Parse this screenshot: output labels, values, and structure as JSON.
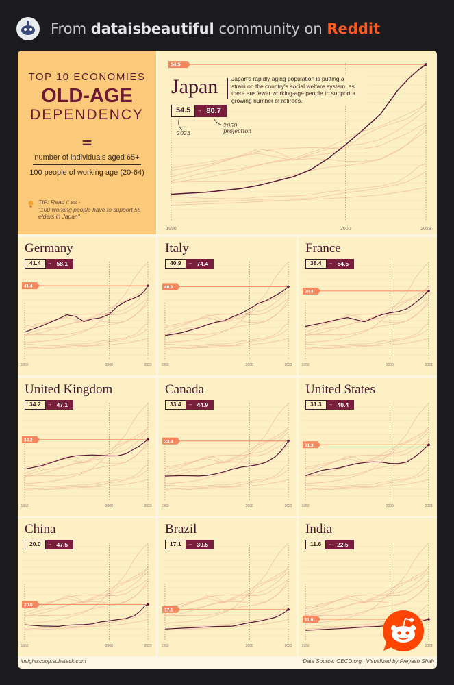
{
  "header": {
    "prefix": "From",
    "community": "datаisbeautiful",
    "middle": "community on",
    "platform": "Reddit"
  },
  "info": {
    "kicker": "TOP 10 ECONOMIES",
    "title_line1": "OLD-AGE",
    "title_line2": "DEPENDENCY",
    "equals": "=",
    "numerator": "number of individuals aged 65+",
    "denominator": "100 people of working age (20-64)",
    "tip_line1": "TIP: Read it as -",
    "tip_line2": "\"100 working people have to support 55",
    "tip_line3": "elders in Japan\""
  },
  "japan_note": {
    "text_lines": [
      "Japan's rapidly aging population is putting a",
      "strain on the country's social welfare system, as",
      "there are fewer working-age people to support a",
      "growing number of retirees."
    ],
    "label_2023": "2023",
    "label_proj1": "2050",
    "label_proj2": "projection"
  },
  "footer": {
    "left": "insightscoop.substack.com",
    "right": "Data Source: OECD.org | Visualized by Preyash Shah"
  },
  "colors": {
    "background": "#1b1b1d",
    "poster": "#fdf6e3",
    "panel": "#fdf0c4",
    "info_panel": "#fbc97a",
    "highlight_line": "#5b1638",
    "ghost_line": "#f2b9a0",
    "tag": "#f5875f",
    "maroon": "#7a1f3b",
    "reddit": "#ff5a1f"
  },
  "chart_data": [
    {
      "type": "line",
      "country": "Japan",
      "v2023": "54.5",
      "v2050": "80.7",
      "tag": "54.5",
      "x_ticks": [
        "1950",
        "2000",
        "2023"
      ],
      "ymax": 55,
      "x": [
        1950,
        1960,
        1970,
        1975,
        1980,
        1985,
        1990,
        1995,
        2000,
        2005,
        2010,
        2015,
        2018,
        2021,
        2023
      ],
      "y": [
        9.2,
        9.9,
        11.2,
        12.3,
        13.8,
        15.3,
        17.8,
        21.7,
        26.5,
        31.7,
        37.2,
        45.6,
        49.5,
        52.8,
        54.5
      ]
    },
    {
      "type": "line",
      "country": "Germany",
      "v2023": "41.4",
      "v2050": "58.1",
      "tag": "41.4",
      "x_ticks": [
        "1950",
        "2000",
        "2023"
      ],
      "ymax": 55,
      "x": [
        1950,
        1960,
        1970,
        1975,
        1980,
        1985,
        1990,
        1995,
        2000,
        2005,
        2010,
        2015,
        2018,
        2021,
        2023
      ],
      "y": [
        15.2,
        18.6,
        22.7,
        25.0,
        24.1,
        21.2,
        22.6,
        23.3,
        25.2,
        29.8,
        32.5,
        34.5,
        35.8,
        38.4,
        41.4
      ]
    },
    {
      "type": "line",
      "country": "Italy",
      "v2023": "40.9",
      "v2050": "74.4",
      "tag": "40.9",
      "x_ticks": [
        "1950",
        "2000",
        "2023"
      ],
      "ymax": 55,
      "x": [
        1950,
        1960,
        1970,
        1975,
        1980,
        1985,
        1990,
        1995,
        2000,
        2005,
        2010,
        2015,
        2018,
        2021,
        2023
      ],
      "y": [
        13.2,
        14.9,
        17.6,
        19.3,
        20.8,
        21.6,
        23.8,
        25.7,
        28.4,
        31.3,
        33.0,
        35.7,
        37.3,
        39.2,
        40.9
      ]
    },
    {
      "type": "line",
      "country": "France",
      "v2023": "38.4",
      "v2050": "54.5",
      "tag": "38.4",
      "x_ticks": [
        "1950",
        "2000",
        "2023"
      ],
      "ymax": 55,
      "x": [
        1950,
        1960,
        1970,
        1975,
        1980,
        1985,
        1990,
        1995,
        2000,
        2005,
        2010,
        2015,
        2018,
        2021,
        2023
      ],
      "y": [
        18.4,
        20.3,
        22.5,
        23.4,
        22.2,
        21.0,
        23.1,
        25.0,
        26.1,
        26.8,
        28.3,
        31.6,
        34.0,
        36.8,
        38.4
      ]
    },
    {
      "type": "line",
      "country": "United Kingdom",
      "v2023": "34.2",
      "v2050": "47.1",
      "tag": "34.2",
      "x_ticks": [
        "1950",
        "2000",
        "2023"
      ],
      "ymax": 55,
      "x": [
        1950,
        1960,
        1970,
        1975,
        1980,
        1985,
        1990,
        1995,
        2000,
        2005,
        2010,
        2015,
        2018,
        2021,
        2023
      ],
      "y": [
        17.5,
        19.4,
        22.5,
        24.0,
        25.0,
        25.3,
        25.5,
        25.3,
        25.0,
        25.0,
        26.2,
        29.0,
        30.6,
        32.8,
        34.2
      ]
    },
    {
      "type": "line",
      "country": "Canada",
      "v2023": "33.4",
      "v2050": "44.9",
      "tag": "33.4",
      "x_ticks": [
        "1950",
        "2000",
        "2023"
      ],
      "ymax": 55,
      "x": [
        1950,
        1960,
        1970,
        1975,
        1980,
        1985,
        1990,
        1995,
        2000,
        2005,
        2010,
        2015,
        2018,
        2021,
        2023
      ],
      "y": [
        13.5,
        13.8,
        13.6,
        13.9,
        14.8,
        16.0,
        17.5,
        18.6,
        19.2,
        20.0,
        21.4,
        24.3,
        27.0,
        30.6,
        33.4
      ]
    },
    {
      "type": "line",
      "country": "United States",
      "v2023": "31.3",
      "v2050": "40.4",
      "tag": "31.3",
      "x_ticks": [
        "1950",
        "2000",
        "2023"
      ],
      "ymax": 55,
      "x": [
        1950,
        1960,
        1970,
        1975,
        1980,
        1985,
        1990,
        1995,
        2000,
        2005,
        2010,
        2015,
        2018,
        2021,
        2023
      ],
      "y": [
        13.8,
        16.9,
        18.2,
        19.4,
        20.5,
        21.2,
        21.6,
        21.4,
        20.7,
        20.6,
        21.5,
        24.6,
        26.8,
        29.5,
        31.3
      ]
    },
    {
      "type": "line",
      "country": "China",
      "v2023": "20.0",
      "v2050": "47.5",
      "tag": "20.0",
      "x_ticks": [
        "1950",
        "2000",
        "2023"
      ],
      "ymax": 55,
      "x": [
        1950,
        1960,
        1970,
        1975,
        1980,
        1985,
        1990,
        1995,
        2000,
        2005,
        2010,
        2015,
        2018,
        2021,
        2023
      ],
      "y": [
        8.5,
        7.8,
        7.6,
        8.2,
        8.5,
        8.6,
        9.0,
        10.1,
        10.7,
        11.4,
        12.0,
        13.6,
        15.8,
        19.0,
        20.0
      ]
    },
    {
      "type": "line",
      "country": "Brazil",
      "v2023": "17.1",
      "v2050": "39.5",
      "tag": "17.1",
      "x_ticks": [
        "1950",
        "2000",
        "2023"
      ],
      "ymax": 55,
      "x": [
        1950,
        1960,
        1970,
        1975,
        1980,
        1985,
        1990,
        1995,
        2000,
        2005,
        2010,
        2015,
        2018,
        2021,
        2023
      ],
      "y": [
        6.1,
        6.6,
        7.0,
        7.3,
        7.5,
        7.6,
        7.7,
        8.7,
        9.7,
        10.4,
        11.4,
        12.6,
        13.8,
        15.6,
        17.1
      ]
    },
    {
      "type": "line",
      "country": "India",
      "v2023": "11.6",
      "v2050": "22.5",
      "tag": "11.6",
      "x_ticks": [
        "1950",
        "2000",
        "2023"
      ],
      "ymax": 55,
      "x": [
        1950,
        1960,
        1970,
        1975,
        1980,
        1985,
        1990,
        1995,
        2000,
        2005,
        2010,
        2015,
        2018,
        2021,
        2023
      ],
      "y": [
        5.4,
        5.8,
        6.3,
        6.6,
        6.9,
        7.2,
        7.4,
        7.7,
        8.0,
        8.5,
        9.0,
        9.8,
        10.4,
        11.1,
        11.6
      ]
    }
  ]
}
